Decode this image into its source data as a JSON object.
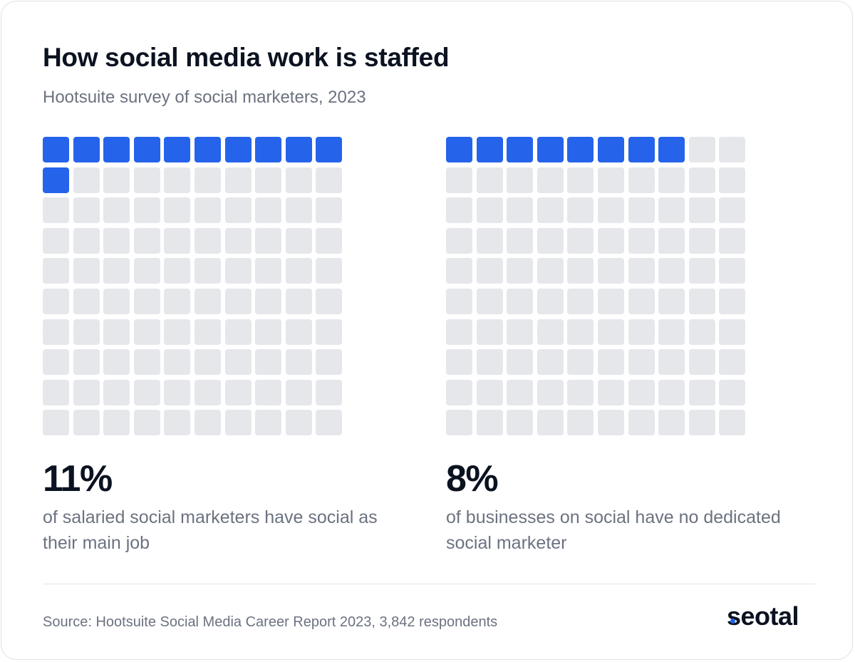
{
  "title": "How social media work is staffed",
  "subtitle": "Hootsuite survey of social marketers, 2023",
  "stats": [
    {
      "value": "11%",
      "description": "of salaried social marketers have social as their main job"
    },
    {
      "value": "8%",
      "description": "of businesses on social have no dedicated social marketer"
    }
  ],
  "source": "Source: Hootsuite Social Media Career Report 2023, 3,842 respondents",
  "logo": {
    "text": "seotal",
    "dot_color": "#2563eb"
  },
  "colors": {
    "filled": "#2563eb",
    "empty": "#e5e7eb",
    "title": "#0b1220",
    "muted": "#6b7280"
  },
  "chart_data": [
    {
      "type": "waffle",
      "grid": [
        10,
        10
      ],
      "total": 100,
      "filled": 11,
      "value_label": "11%",
      "caption": "of salaried social marketers have social as their main job"
    },
    {
      "type": "waffle",
      "grid": [
        10,
        10
      ],
      "total": 100,
      "filled": 8,
      "value_label": "8%",
      "caption": "of businesses on social have no dedicated social marketer"
    }
  ]
}
